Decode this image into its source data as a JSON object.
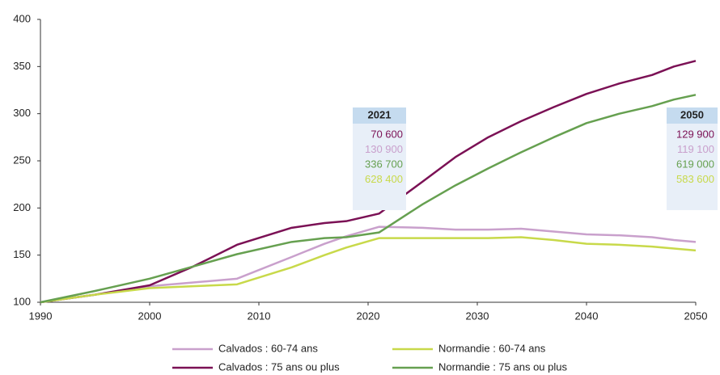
{
  "chart_data": {
    "type": "line",
    "x": [
      1990,
      1995,
      2000,
      2004,
      2008,
      2013,
      2016,
      2018,
      2021,
      2025,
      2028,
      2031,
      2034,
      2037,
      2040,
      2043,
      2046,
      2048,
      2050
    ],
    "series": [
      {
        "name": "Calvados : 60-74 ans",
        "color": "#c9a0cc",
        "values": [
          100,
          108,
          117,
          121,
          125,
          148,
          162,
          170,
          180,
          179,
          177,
          177,
          178,
          175,
          172,
          171,
          169,
          166,
          164
        ]
      },
      {
        "name": "Calvados : 75 ans ou plus",
        "color": "#7b1155",
        "values": [
          100,
          108,
          118,
          138,
          161,
          179,
          184,
          186,
          194,
          228,
          254,
          275,
          292,
          307,
          321,
          332,
          341,
          350,
          356
        ]
      },
      {
        "name": "Normandie : 60-74 ans",
        "color": "#c8d94a",
        "values": [
          100,
          108,
          115,
          117,
          119,
          137,
          150,
          158,
          168,
          168,
          168,
          168,
          169,
          166,
          162,
          161,
          159,
          157,
          155
        ]
      },
      {
        "name": "Normandie : 75 ans ou plus",
        "color": "#66a050",
        "values": [
          100,
          112,
          125,
          138,
          151,
          164,
          168,
          169,
          174,
          204,
          224,
          242,
          259,
          275,
          290,
          300,
          308,
          315,
          320
        ]
      }
    ],
    "xlim": [
      1990,
      2050
    ],
    "xticks": [
      1990,
      2000,
      2010,
      2020,
      2030,
      2040,
      2050
    ],
    "ylim": [
      100,
      400
    ],
    "yticks": [
      100,
      150,
      200,
      250,
      300,
      350,
      400
    ],
    "annotations": [
      {
        "label": "2021",
        "values": [
          "70 600",
          "130 900",
          "336 700",
          "628 400"
        ]
      },
      {
        "label": "2050",
        "values": [
          "129 900",
          "119 100",
          "619 000",
          "583 600"
        ]
      }
    ]
  }
}
